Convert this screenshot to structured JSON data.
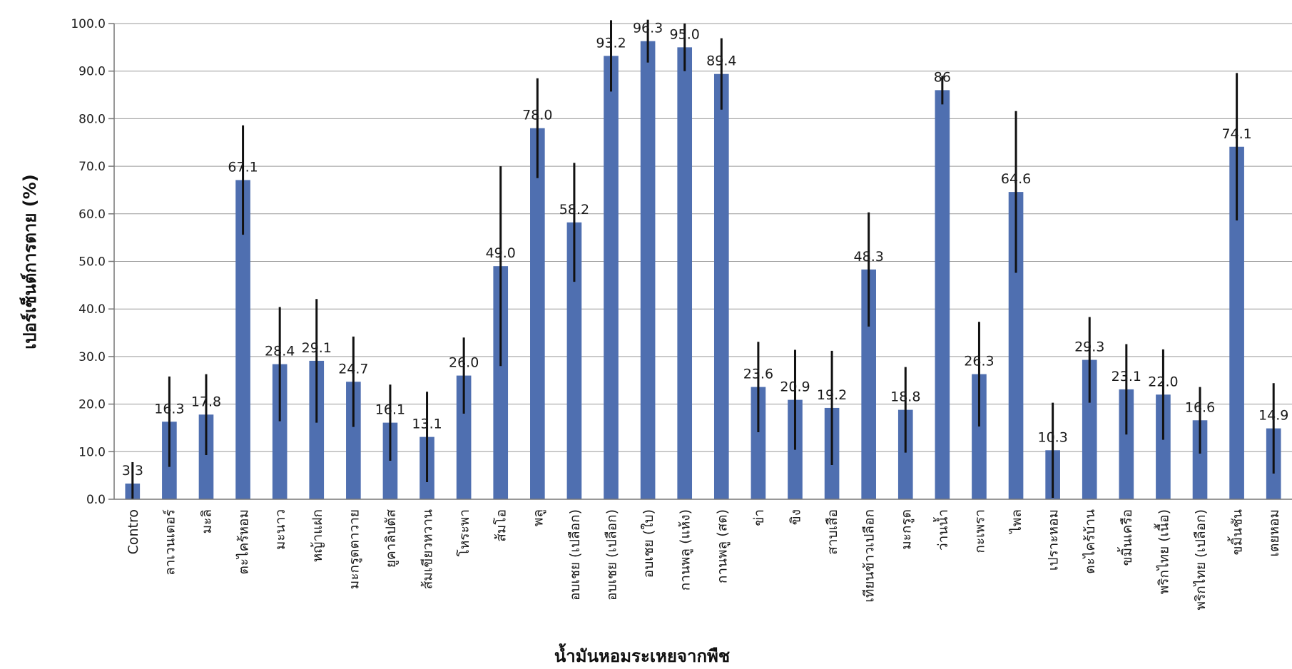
{
  "chart_data": {
    "type": "bar",
    "title": "",
    "xlabel": "น้ำมันหอมระเหยจากพืช",
    "ylabel": "เปอร์เซ็นต์การตาย (%)",
    "ylim": [
      0,
      100
    ],
    "yticks": [
      "0.0",
      "10.0",
      "20.0",
      "30.0",
      "40.0",
      "50.0",
      "60.0",
      "70.0",
      "80.0",
      "90.0",
      "100.0"
    ],
    "grid": true,
    "bar_color": "#4f6fb0",
    "error_color": "#111111",
    "categories": [
      "Contro",
      "ลาเวนเดอร์",
      "มะลิ",
      "ตะไคร้หอม",
      "มะนาว",
      "หญ้าแฝก",
      "มะกรูดตาวาย",
      "ยูคาลิปตัส",
      "ส้มเขียวหวาน",
      "โหระพา",
      "ส้มโอ",
      "พลู",
      "อบเชย (เปลือก)",
      "อบเชย (เปลือก)",
      "อบเชย (ใบ)",
      "กานพลู (แห้ง)",
      "กานพลู (สด)",
      "ข่า",
      "ขิง",
      "สาบเสือ",
      "เทียนข้าวเปลือก",
      "มะกรูด",
      "ว่านน้ำ",
      "กะเพรา",
      "ไพล",
      "เปราะหอม",
      "ตะไคร้บ้าน",
      "ขมิ้นเครือ",
      "พริกไทย (เนื้อ)",
      "พริกไทย (เปลือก)",
      "ขมิ้นชัน",
      "เตยหอม"
    ],
    "series": [
      {
        "values": [
          3.3,
          16.3,
          17.8,
          67.1,
          28.4,
          29.1,
          24.7,
          16.1,
          13.1,
          26.0,
          49.0,
          78.0,
          58.2,
          93.2,
          96.3,
          95.0,
          89.4,
          23.6,
          20.9,
          19.2,
          48.3,
          18.8,
          86,
          26.3,
          64.6,
          10.3,
          29.3,
          23.1,
          22.0,
          16.6,
          74.1,
          14.9
        ],
        "errors": [
          4.5,
          9.5,
          8.5,
          11.5,
          12.0,
          13.0,
          9.5,
          8.0,
          9.5,
          8.0,
          21.0,
          10.5,
          12.5,
          7.5,
          4.5,
          5.0,
          7.5,
          9.5,
          10.5,
          12.0,
          12.0,
          9.0,
          3.0,
          11.0,
          17.0,
          10.0,
          9.0,
          9.5,
          9.5,
          7.0,
          15.5,
          9.5
        ]
      }
    ],
    "data_labels": [
      "3.3",
      "16.3",
      "17.8",
      "67.1",
      "28.4",
      "29.1",
      "24.7",
      "16.1",
      "13.1",
      "26.0",
      "49.0",
      "78.0",
      "58.2",
      "93.2",
      "96.3",
      "95.0",
      "89.4",
      "23.6",
      "20.9",
      "19.2",
      "48.3",
      "18.8",
      "86",
      "26.3",
      "64.6",
      "10.3",
      "29.3",
      "23.1",
      "22.0",
      "16.6",
      "74.1",
      "14.9"
    ]
  }
}
